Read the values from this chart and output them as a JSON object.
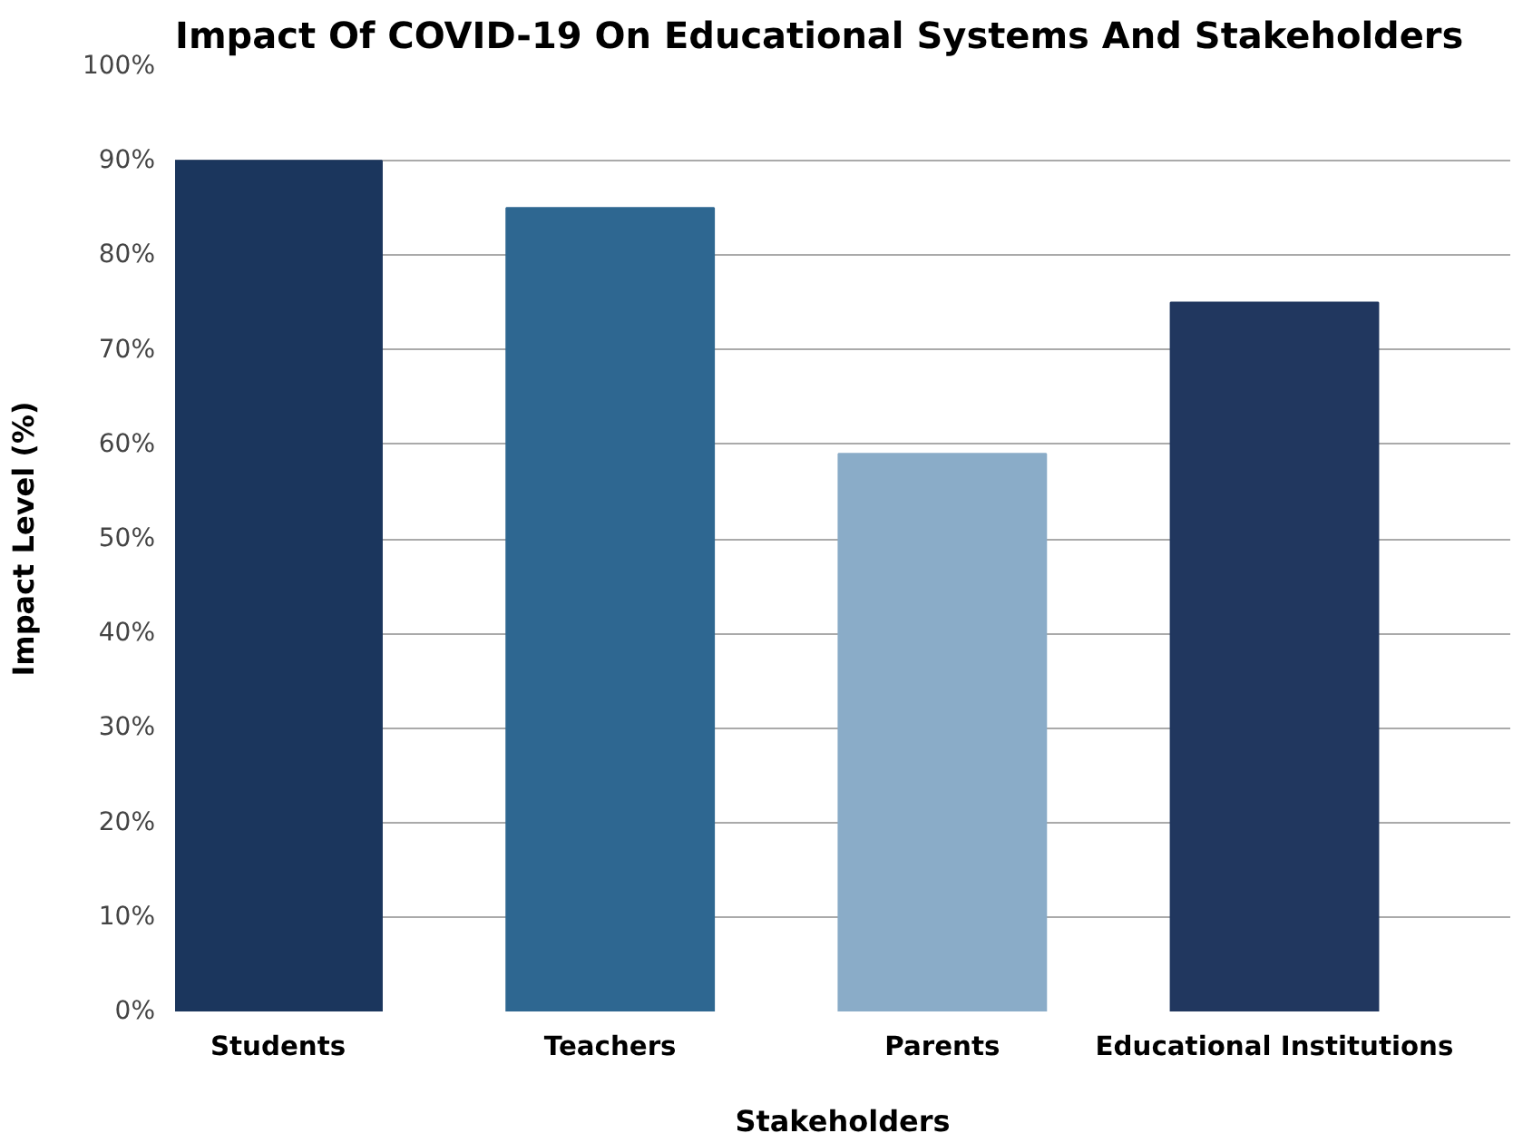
{
  "chart_data": {
    "type": "bar",
    "title": "Impact Of COVID-19  On Educational Systems And Stakeholders",
    "xlabel": "Stakeholders",
    "ylabel": "Impact Level (%)",
    "categories": [
      "Students",
      "Teachers",
      "Parents",
      "Educational Institutions"
    ],
    "values": [
      90,
      85,
      59,
      75
    ],
    "colors": [
      "#1b365d",
      "#2e6791",
      "#8aacc8",
      "#21375f"
    ],
    "ylim": [
      0,
      100
    ],
    "yticks": [
      {
        "value": 0,
        "label": "0%"
      },
      {
        "value": 10,
        "label": "10%"
      },
      {
        "value": 20,
        "label": "20%"
      },
      {
        "value": 30,
        "label": "30%"
      },
      {
        "value": 40,
        "label": "40%"
      },
      {
        "value": 50,
        "label": "50%"
      },
      {
        "value": 60,
        "label": "60%"
      },
      {
        "value": 70,
        "label": "70%"
      },
      {
        "value": 80,
        "label": "80%"
      },
      {
        "value": 90,
        "label": "90%"
      },
      {
        "value": 100,
        "label": "100%"
      }
    ],
    "grid": "y"
  }
}
